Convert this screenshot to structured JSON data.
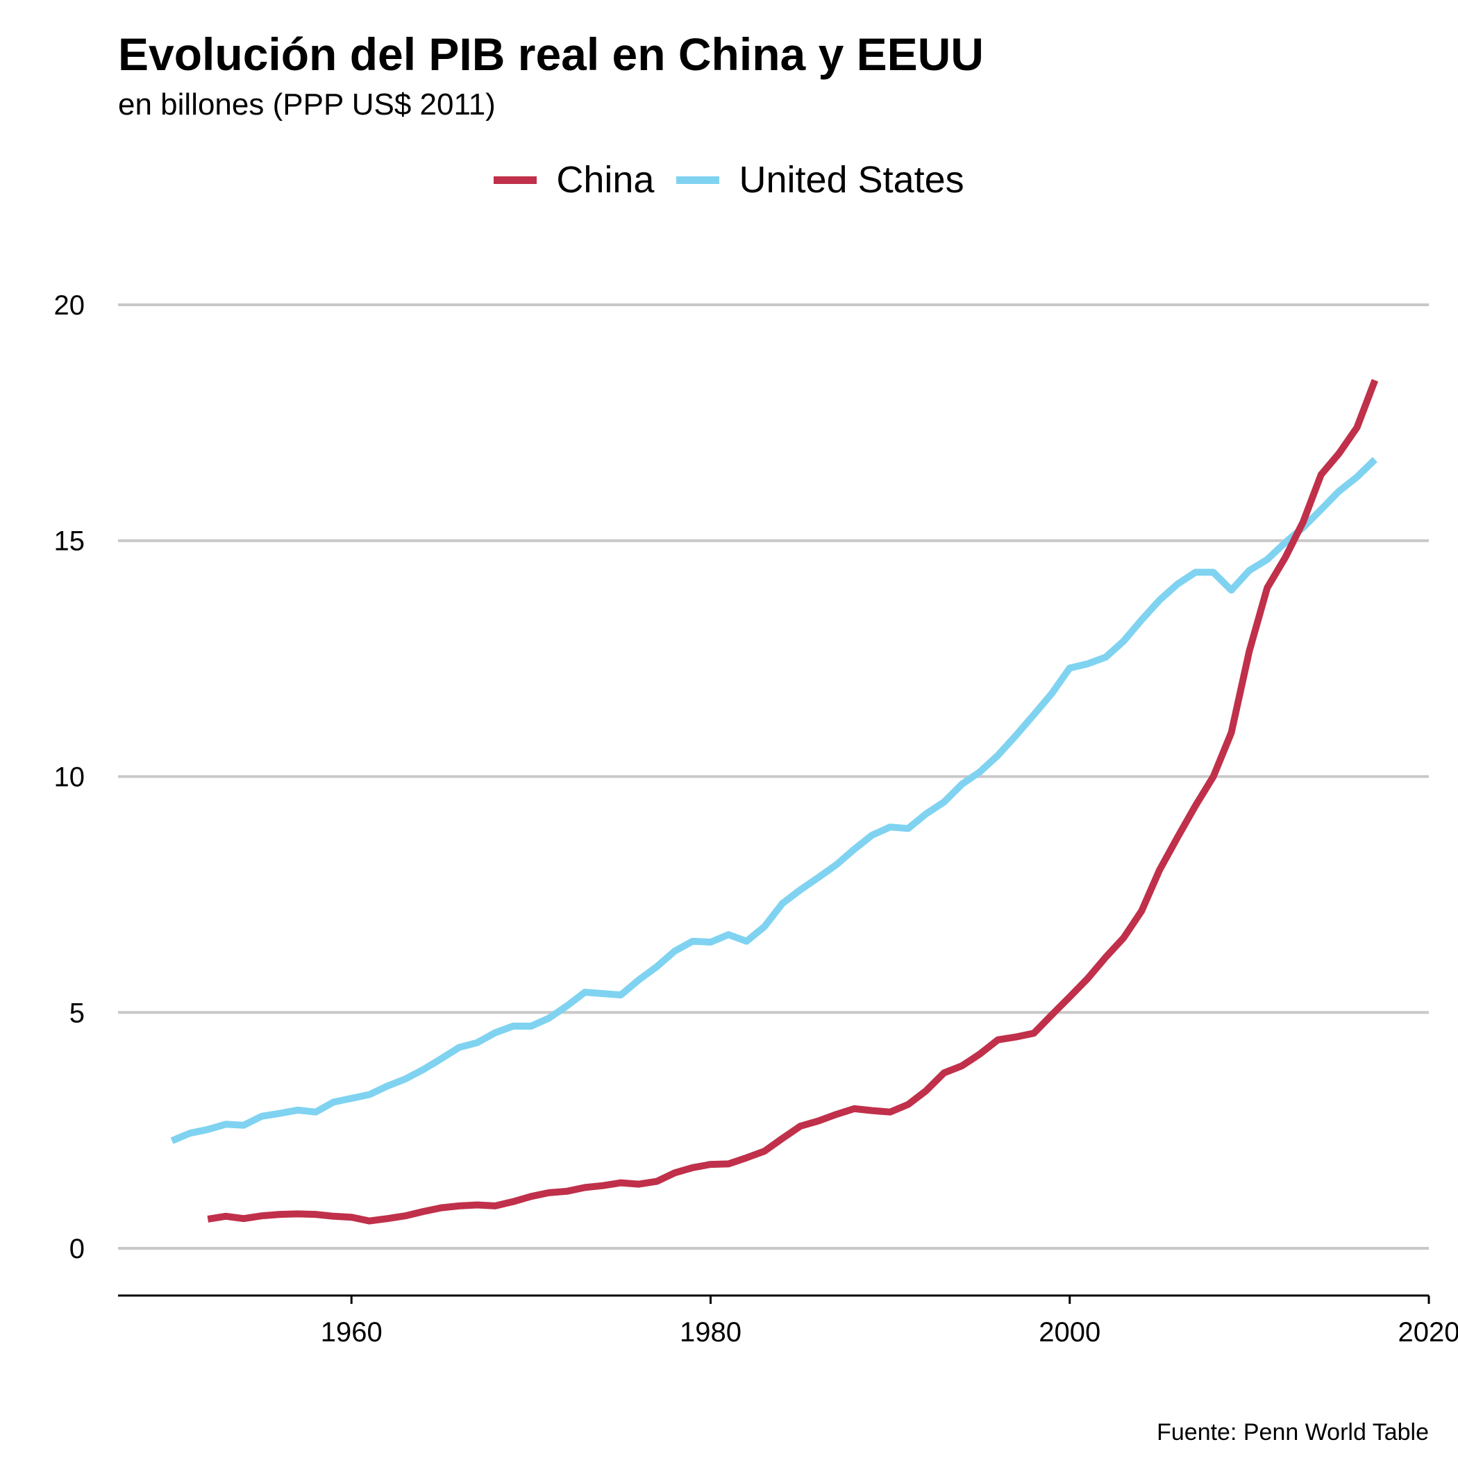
{
  "chart_data": {
    "type": "line",
    "title": "Evolución del PIB real en China y EEUU",
    "subtitle": "en billones (PPP US$ 2011)",
    "caption": "Fuente: Penn World Table",
    "xlabel": "",
    "ylabel": "",
    "xlim": [
      1947,
      2020
    ],
    "ylim": [
      -1,
      20.5
    ],
    "x_ticks": [
      1960,
      1980,
      2000,
      2020
    ],
    "y_ticks": [
      0,
      5,
      10,
      15,
      20
    ],
    "grid": "horizontal",
    "legend_position": "top",
    "series": [
      {
        "name": "China",
        "color": "#c0304a",
        "x": [
          1952,
          1953,
          1954,
          1955,
          1956,
          1957,
          1958,
          1959,
          1960,
          1961,
          1962,
          1963,
          1964,
          1965,
          1966,
          1967,
          1968,
          1969,
          1970,
          1971,
          1972,
          1973,
          1974,
          1975,
          1976,
          1977,
          1978,
          1979,
          1980,
          1981,
          1982,
          1983,
          1984,
          1985,
          1986,
          1987,
          1988,
          1989,
          1990,
          1991,
          1992,
          1993,
          1994,
          1995,
          1996,
          1997,
          1998,
          1999,
          2000,
          2001,
          2002,
          2003,
          2004,
          2005,
          2006,
          2007,
          2008,
          2009,
          2010,
          2011,
          2012,
          2013,
          2014,
          2015,
          2016,
          2017
        ],
        "values": [
          0.62,
          0.68,
          0.63,
          0.69,
          0.72,
          0.73,
          0.72,
          0.68,
          0.66,
          0.58,
          0.63,
          0.69,
          0.78,
          0.86,
          0.9,
          0.92,
          0.9,
          0.99,
          1.1,
          1.18,
          1.21,
          1.29,
          1.33,
          1.39,
          1.36,
          1.42,
          1.6,
          1.71,
          1.78,
          1.79,
          1.92,
          2.06,
          2.33,
          2.59,
          2.7,
          2.84,
          2.96,
          2.92,
          2.89,
          3.05,
          3.34,
          3.72,
          3.87,
          4.12,
          4.42,
          4.48,
          4.56,
          4.95,
          5.33,
          5.72,
          6.17,
          6.58,
          7.15,
          8.02,
          8.71,
          9.38,
          10.0,
          10.93,
          12.66,
          14.0,
          14.64,
          15.4,
          16.4,
          16.85,
          17.4,
          18.4
        ]
      },
      {
        "name": "United States",
        "color": "#7fd3f0",
        "x": [
          1950,
          1951,
          1952,
          1953,
          1954,
          1955,
          1956,
          1957,
          1958,
          1959,
          1960,
          1961,
          1962,
          1963,
          1964,
          1965,
          1966,
          1967,
          1968,
          1969,
          1970,
          1971,
          1972,
          1973,
          1974,
          1975,
          1976,
          1977,
          1978,
          1979,
          1980,
          1981,
          1982,
          1983,
          1984,
          1985,
          1986,
          1987,
          1988,
          1989,
          1990,
          1991,
          1992,
          1993,
          1994,
          1995,
          1996,
          1997,
          1998,
          1999,
          2000,
          2001,
          2002,
          2003,
          2004,
          2005,
          2006,
          2007,
          2008,
          2009,
          2010,
          2011,
          2012,
          2013,
          2014,
          2015,
          2016,
          2017
        ],
        "values": [
          2.28,
          2.44,
          2.52,
          2.63,
          2.61,
          2.8,
          2.86,
          2.93,
          2.89,
          3.1,
          3.18,
          3.26,
          3.44,
          3.59,
          3.79,
          4.02,
          4.26,
          4.36,
          4.57,
          4.71,
          4.71,
          4.88,
          5.14,
          5.43,
          5.4,
          5.37,
          5.69,
          5.97,
          6.3,
          6.51,
          6.49,
          6.65,
          6.51,
          6.82,
          7.31,
          7.6,
          7.86,
          8.13,
          8.46,
          8.76,
          8.93,
          8.9,
          9.21,
          9.46,
          9.84,
          10.1,
          10.45,
          10.87,
          11.31,
          11.76,
          12.3,
          12.39,
          12.53,
          12.87,
          13.32,
          13.74,
          14.08,
          14.33,
          14.33,
          13.95,
          14.37,
          14.6,
          14.96,
          15.28,
          15.66,
          16.05,
          16.35,
          16.72
        ]
      }
    ]
  }
}
